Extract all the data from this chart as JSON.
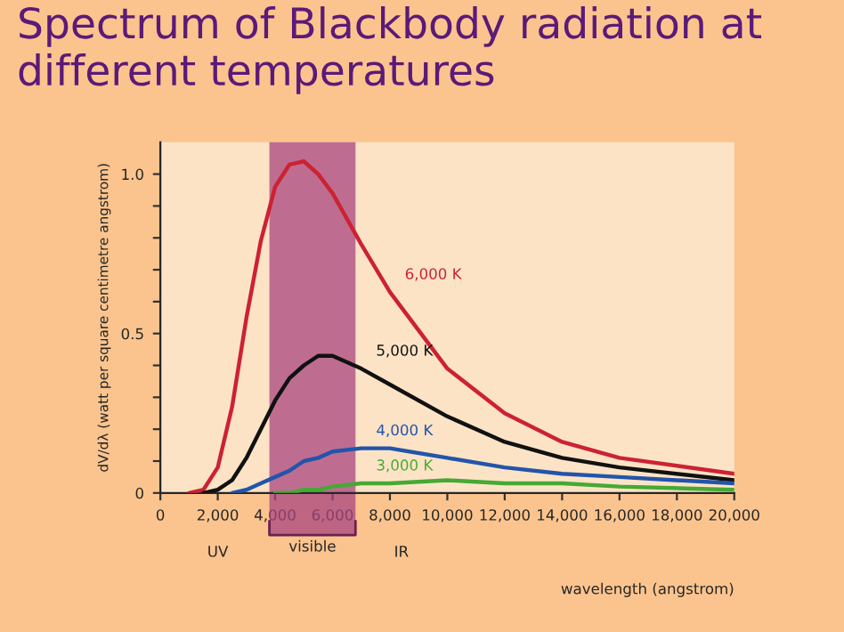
{
  "chart_data": {
    "type": "line",
    "title": "Spectrum of Blackbody radiation at different temperatures",
    "xlabel": "wavelength (angstrom)",
    "ylabel": "dV/dλ (watt per square centimetre angstrom)",
    "x": [
      1000,
      1500,
      2000,
      2500,
      3000,
      3500,
      4000,
      4500,
      5000,
      5500,
      6000,
      7000,
      8000,
      10000,
      12000,
      14000,
      16000,
      20000
    ],
    "series": [
      {
        "name": "6,000 K",
        "color": "#cc2233",
        "values": [
          0,
          0.01,
          0.08,
          0.27,
          0.55,
          0.79,
          0.96,
          1.03,
          1.04,
          1.0,
          0.94,
          0.78,
          0.63,
          0.39,
          0.25,
          0.16,
          0.11,
          0.06
        ]
      },
      {
        "name": "5,000 K",
        "color": "#111111",
        "values": [
          null,
          0,
          0.01,
          0.04,
          0.11,
          0.2,
          0.29,
          0.36,
          0.4,
          0.43,
          0.43,
          0.39,
          0.34,
          0.24,
          0.16,
          0.11,
          0.08,
          0.04
        ]
      },
      {
        "name": "4,000 K",
        "color": "#2255aa",
        "values": [
          null,
          null,
          null,
          0,
          0.01,
          0.03,
          0.05,
          0.07,
          0.1,
          0.11,
          0.13,
          0.14,
          0.14,
          0.11,
          0.08,
          0.06,
          0.05,
          0.03
        ]
      },
      {
        "name": "3,000 K",
        "color": "#44aa33",
        "values": [
          null,
          null,
          null,
          null,
          null,
          null,
          0,
          0,
          0.01,
          0.01,
          0.02,
          0.03,
          0.03,
          0.04,
          0.03,
          0.03,
          0.02,
          0.01
        ]
      }
    ],
    "xlim": [
      0,
      20000
    ],
    "ylim": [
      0,
      1.1
    ],
    "xticks": [
      {
        "value": 0,
        "label": "0"
      },
      {
        "value": 2000,
        "label": "2,000"
      },
      {
        "value": 4000,
        "label": "4,000"
      },
      {
        "value": 6000,
        "label": "6,000"
      },
      {
        "value": 8000,
        "label": "8,000"
      },
      {
        "value": 10000,
        "label": "10,000"
      },
      {
        "value": 12000,
        "label": "12,000"
      },
      {
        "value": 14000,
        "label": "14,000"
      },
      {
        "value": 16000,
        "label": "16,000"
      },
      {
        "value": 18000,
        "label": "18,000"
      },
      {
        "value": 20000,
        "label": "20,000"
      }
    ],
    "yticks": [
      0,
      {
        "value": 0.1,
        "label": null
      },
      {
        "value": 0.2,
        "label": null
      },
      {
        "value": 0.3,
        "label": null
      },
      {
        "value": 0.4,
        "label": null
      },
      0.5,
      {
        "value": 0.6,
        "label": null
      },
      {
        "value": 0.7,
        "label": null
      },
      {
        "value": 0.8,
        "label": null
      },
      {
        "value": 0.9,
        "label": null
      },
      {
        "value": 1.0,
        "label": "1.0"
      }
    ],
    "bands": [
      {
        "axis": "x",
        "from": 3800,
        "to": 6800,
        "label": "visible",
        "color": "#a8457f"
      }
    ],
    "annotations": [
      "UV",
      "IR"
    ],
    "legend": false,
    "grid": false
  }
}
